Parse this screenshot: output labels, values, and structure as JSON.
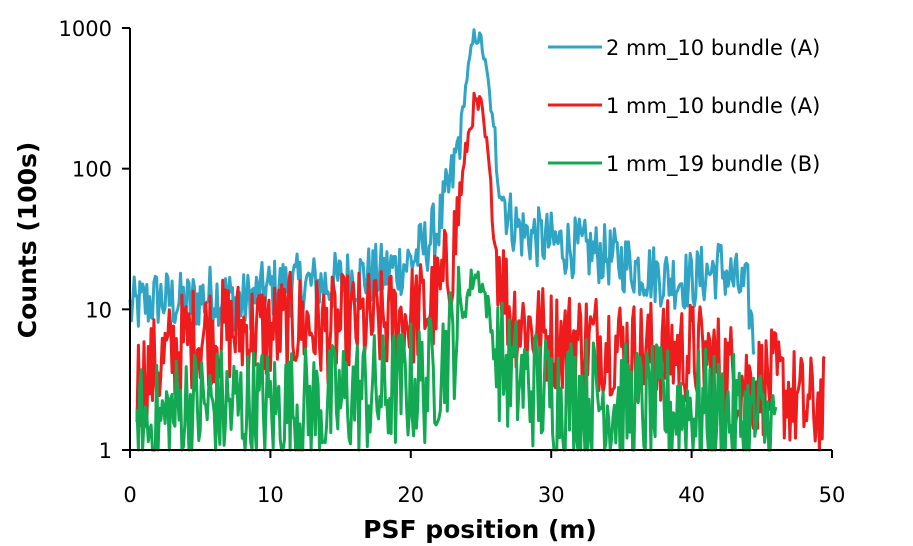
{
  "chart_data": {
    "type": "line",
    "xlabel": "PSF position (m)",
    "ylabel": "Counts (100s)",
    "xlim": [
      0,
      50
    ],
    "ylim": [
      1,
      1000
    ],
    "yscale": "log",
    "x_ticks": [
      "0",
      "10",
      "20",
      "30",
      "40",
      "50"
    ],
    "y_ticks": [
      "1",
      "10",
      "100",
      "1000"
    ],
    "grid": false,
    "legend_position": "top-right",
    "series": [
      {
        "name": "2 mm_10 bundle (A)",
        "color": "#2fa4c4",
        "x": [
          0,
          2,
          4,
          6,
          8,
          10,
          12,
          14,
          16,
          18,
          20,
          21,
          22,
          23,
          23.5,
          24,
          24.5,
          25,
          25.5,
          26,
          26.5,
          27,
          28,
          30,
          32,
          34,
          36,
          38,
          40,
          42,
          44,
          44.5
        ],
        "values": [
          10,
          12,
          11,
          13,
          11,
          14,
          15,
          15,
          17,
          18,
          22,
          28,
          40,
          90,
          180,
          450,
          880,
          820,
          420,
          150,
          70,
          45,
          35,
          30,
          27,
          24,
          20,
          17,
          16,
          20,
          13,
          5
        ]
      },
      {
        "name": "1 mm_10 bundle (A)",
        "color": "#ee1c1c",
        "x": [
          0.5,
          2,
          4,
          6,
          8,
          10,
          12,
          14,
          16,
          18,
          20,
          21,
          22,
          23,
          23.5,
          24,
          24.5,
          25,
          25.5,
          26,
          27,
          28,
          30,
          32,
          34,
          36,
          38,
          40,
          42,
          44,
          46,
          48,
          49.5
        ],
        "values": [
          3,
          4,
          6,
          7,
          7,
          7,
          8,
          7,
          8,
          8,
          9,
          10,
          12,
          25,
          60,
          150,
          280,
          270,
          120,
          30,
          10,
          8,
          6,
          6,
          6,
          5,
          5,
          5,
          4,
          3,
          3,
          2,
          2
        ]
      },
      {
        "name": "1 mm_19 bundle (B)",
        "color": "#13a852",
        "x": [
          0.5,
          2,
          4,
          6,
          8,
          10,
          12,
          14,
          16,
          18,
          20,
          21,
          22,
          23,
          24,
          24.5,
          25,
          25.5,
          26,
          27,
          28,
          30,
          32,
          34,
          36,
          38,
          40,
          42,
          44,
          46
        ],
        "values": [
          1.5,
          1.5,
          2,
          2,
          2,
          2,
          2,
          2,
          2.5,
          2.5,
          3,
          3,
          4,
          6,
          12,
          18,
          16,
          10,
          5,
          3.5,
          3,
          2.5,
          2.5,
          2.2,
          2,
          2,
          2,
          1.8,
          1.6,
          1.4
        ]
      }
    ]
  }
}
